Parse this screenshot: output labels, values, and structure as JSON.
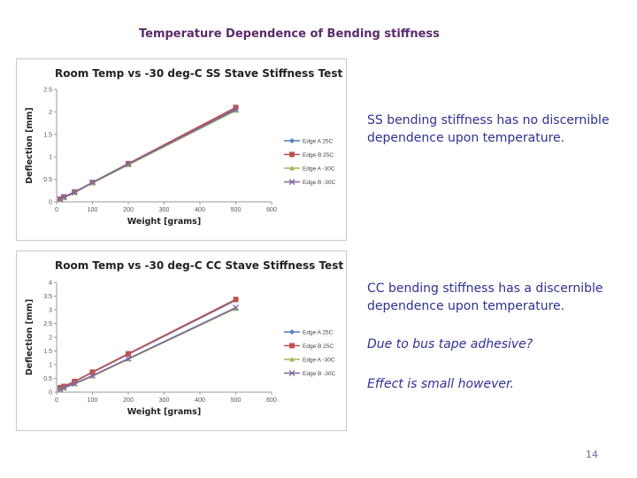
{
  "slide": {
    "title": "Temperature Dependence of Bending stiffness",
    "page_number": "14",
    "bullet_1": "SS bending stiffness has no discernible dependence upon temperature.",
    "bullet_2": "CC bending stiffness has a discernible dependence upon temperature.",
    "bullet_3": "Due to bus tape adhesive?",
    "bullet_4": "Effect is small however."
  },
  "colors": {
    "edge_a_25": "#4f81bd",
    "edge_b_25": "#c0504d",
    "edge_a_m30": "#9bbb59",
    "edge_b_m30": "#8064a2",
    "title_text": "#5b2a6b",
    "bullet_text": "#2e3192"
  },
  "chart_data": [
    {
      "type": "line",
      "title": "Room Temp vs -30 deg-C SS Stave Stiffness Test",
      "xlabel": "Weight [grams]",
      "ylabel": "Deflection [mm]",
      "xlim": [
        0,
        600
      ],
      "ylim": [
        0,
        2.5
      ],
      "xticks": [
        0,
        100,
        200,
        300,
        400,
        500,
        600
      ],
      "yticks": [
        0,
        0.5,
        1,
        1.5,
        2,
        2.5
      ],
      "ytick_labels": [
        "0",
        "0.5",
        "1",
        "1.5",
        "2",
        "2.5"
      ],
      "x": [
        10,
        20,
        50,
        100,
        200,
        500
      ],
      "series": [
        {
          "name": "Edge A 25C",
          "marker": "diamond",
          "values": [
            0.05,
            0.1,
            0.21,
            0.42,
            0.83,
            2.07
          ]
        },
        {
          "name": "Edge B 25C",
          "marker": "square",
          "values": [
            0.06,
            0.11,
            0.22,
            0.43,
            0.85,
            2.1
          ]
        },
        {
          "name": "Edge A -30C",
          "marker": "triangle",
          "values": [
            0.04,
            0.09,
            0.2,
            0.42,
            0.82,
            2.03
          ]
        },
        {
          "name": "Edge B -30C",
          "marker": "x",
          "values": [
            0.05,
            0.1,
            0.21,
            0.43,
            0.84,
            2.05
          ]
        }
      ]
    },
    {
      "type": "line",
      "title": "Room Temp vs -30 deg-C CC Stave Stiffness Test",
      "xlabel": "Weight [grams]",
      "ylabel": "Deflection [mm]",
      "xlim": [
        0,
        600
      ],
      "ylim": [
        0,
        4
      ],
      "xticks": [
        0,
        100,
        200,
        300,
        400,
        500,
        600
      ],
      "yticks": [
        0,
        0.5,
        1,
        1.5,
        2,
        2.5,
        3,
        3.5,
        4
      ],
      "ytick_labels": [
        "0",
        "0.5",
        "1",
        "1.5",
        "2",
        "2.5",
        "3",
        "3.5",
        "4"
      ],
      "x": [
        10,
        20,
        50,
        100,
        200,
        500
      ],
      "series": [
        {
          "name": "Edge A 25C",
          "marker": "diamond",
          "values": [
            0.15,
            0.2,
            0.38,
            0.72,
            1.38,
            3.35
          ]
        },
        {
          "name": "Edge B 25C",
          "marker": "square",
          "values": [
            0.16,
            0.21,
            0.39,
            0.73,
            1.4,
            3.38
          ]
        },
        {
          "name": "Edge A -30C",
          "marker": "triangle",
          "values": [
            0.1,
            0.15,
            0.3,
            0.58,
            1.2,
            3.05
          ]
        },
        {
          "name": "Edge B -30C",
          "marker": "x",
          "values": [
            0.1,
            0.16,
            0.31,
            0.6,
            1.22,
            3.08
          ]
        }
      ]
    }
  ]
}
